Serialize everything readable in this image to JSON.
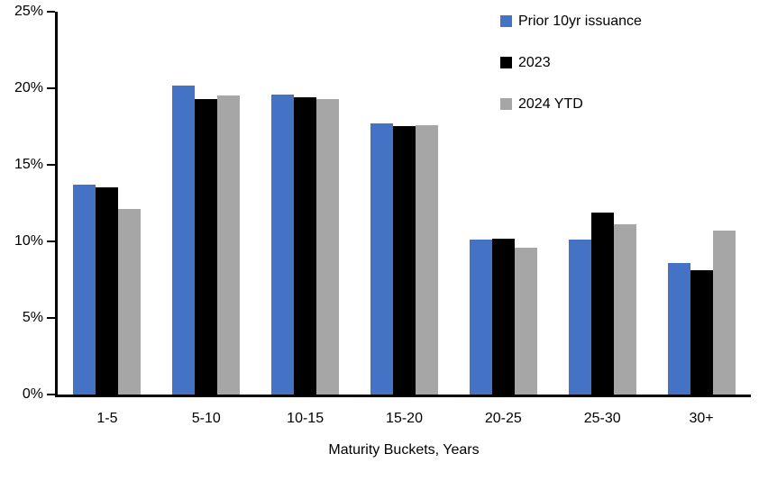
{
  "chart_data": {
    "type": "bar",
    "title": "",
    "xlabel": "Maturity Buckets, Years",
    "ylabel": "",
    "categories": [
      "1-5",
      "5-10",
      "10-15",
      "15-20",
      "20-25",
      "25-30",
      "30+"
    ],
    "series": [
      {
        "name": "Prior 10yr issuance",
        "color": "#4472C4",
        "values": [
          13.7,
          20.2,
          19.6,
          17.7,
          10.1,
          10.1,
          8.6
        ]
      },
      {
        "name": "2023",
        "color": "#000000",
        "values": [
          13.5,
          19.3,
          19.4,
          17.5,
          10.2,
          11.9,
          8.1
        ]
      },
      {
        "name": "2024 YTD",
        "color": "#A6A6A6",
        "values": [
          12.1,
          19.5,
          19.3,
          17.6,
          9.6,
          11.1,
          10.7
        ]
      }
    ],
    "ylim": [
      0,
      25
    ],
    "ytick_step": 5,
    "ytick_labels": [
      "0%",
      "5%",
      "10%",
      "15%",
      "20%",
      "25%"
    ],
    "grid": false,
    "legend_position": "top-right",
    "axis_color": "#000000"
  }
}
